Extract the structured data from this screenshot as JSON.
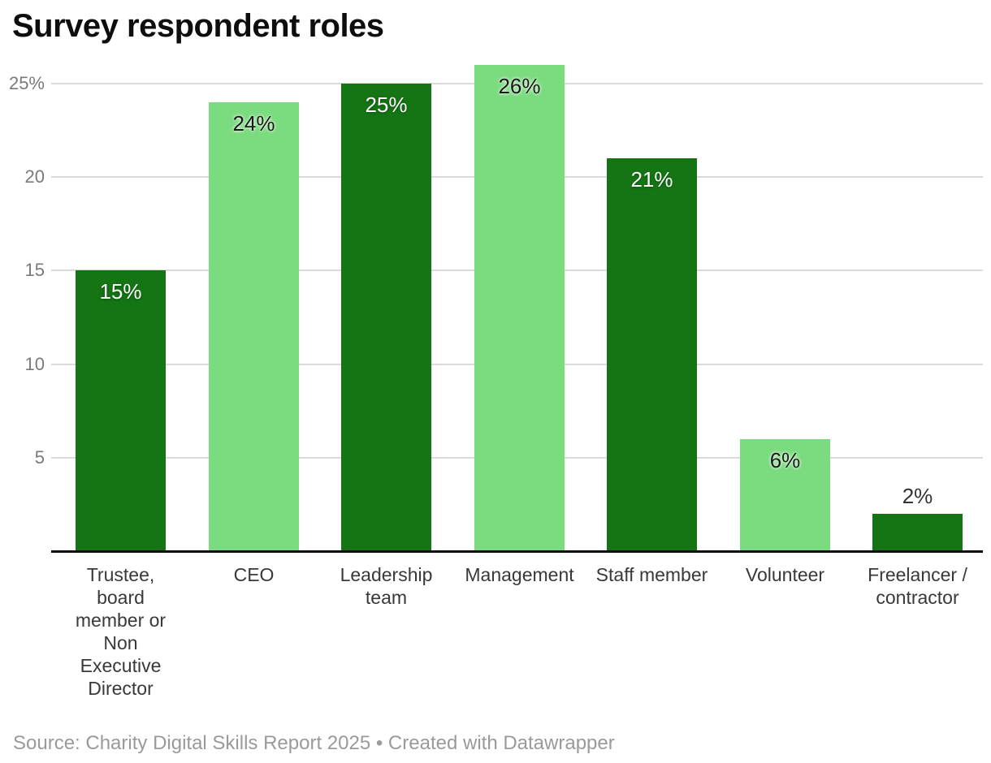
{
  "chart": {
    "title": "Survey respondent roles"
  },
  "chart_data": {
    "type": "bar",
    "title": "Survey respondent roles",
    "categories": [
      "Trustee,\nboard\nmember or\nNon\nExecutive\nDirector",
      "CEO",
      "Leadership\nteam",
      "Management",
      "Staff member",
      "Volunteer",
      "Freelancer /\ncontractor"
    ],
    "values": [
      15,
      24,
      25,
      26,
      21,
      6,
      2
    ],
    "value_labels": [
      "15%",
      "24%",
      "25%",
      "26%",
      "21%",
      "6%",
      "2%"
    ],
    "bar_color_roles": [
      "dark",
      "light",
      "dark",
      "light",
      "dark",
      "light",
      "dark"
    ],
    "palette": {
      "dark": "#157515",
      "light": "#7bdb7f"
    },
    "xlabel": "",
    "ylabel": "",
    "ylim": [
      0,
      26
    ],
    "y_ticks": [
      {
        "value": 5,
        "label": "5"
      },
      {
        "value": 10,
        "label": "10"
      },
      {
        "value": 15,
        "label": "15"
      },
      {
        "value": 20,
        "label": "20"
      },
      {
        "value": 25,
        "label": "25%"
      }
    ],
    "grid": "horizontal gridlines on",
    "legend": "none"
  },
  "footer": {
    "text": "Source: Charity Digital Skills Report 2025 • Created with Datawrapper"
  }
}
